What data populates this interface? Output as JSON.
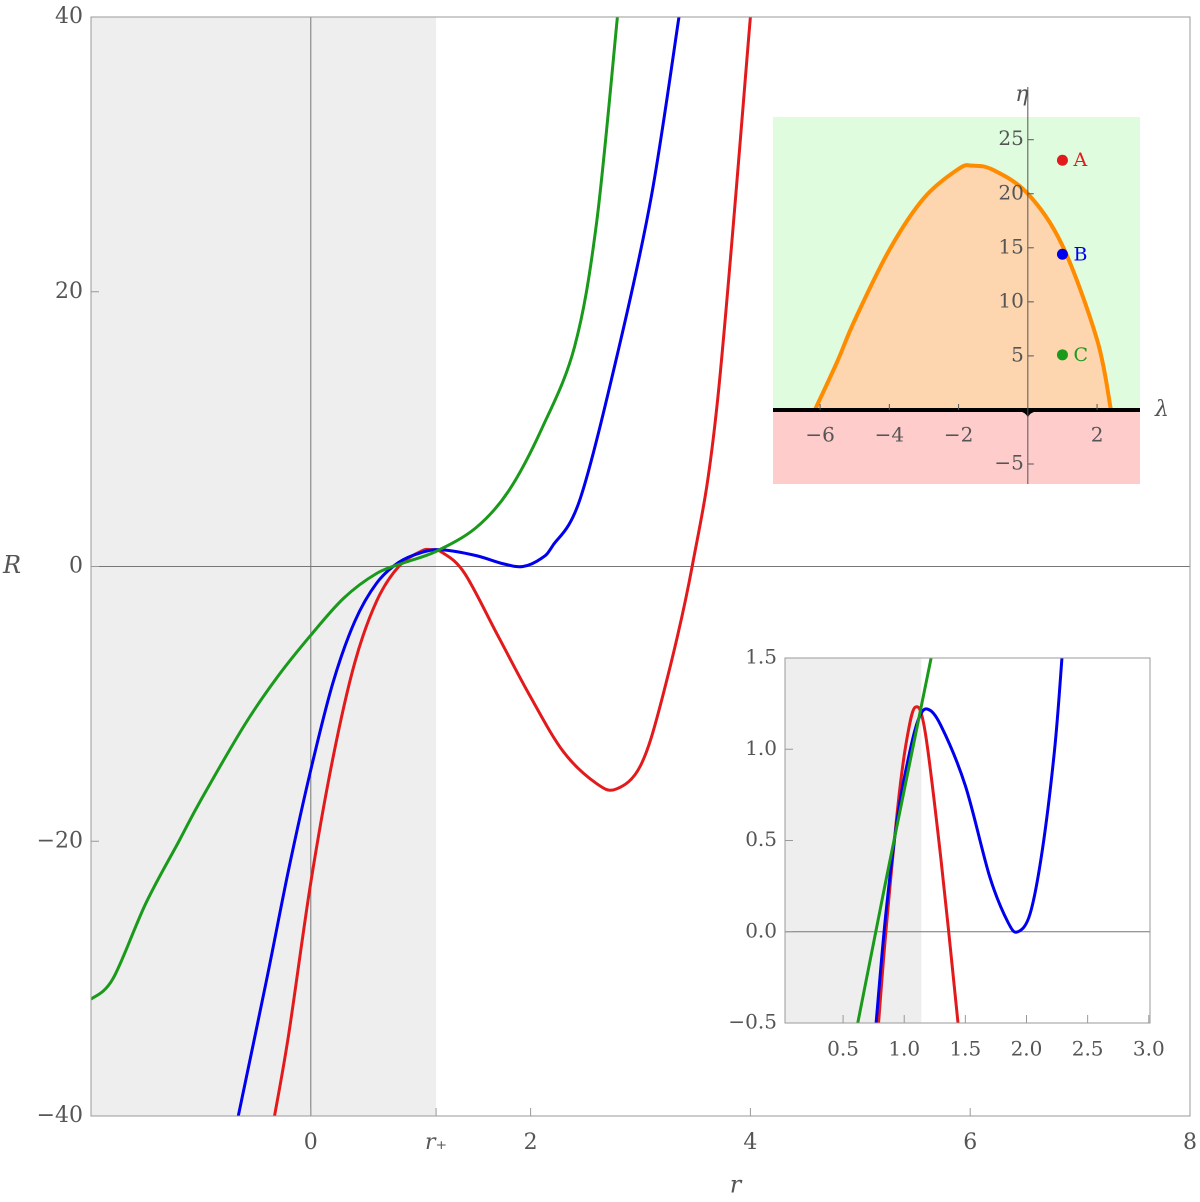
{
  "chart_data": [
    {
      "type": "line",
      "xlabel": "r",
      "ylabel": "R",
      "xlim": [
        -2,
        8
      ],
      "ylim": [
        -40,
        40
      ],
      "xticks": [
        0,
        {
          "value": 1.14,
          "label": "r₊"
        },
        2,
        4,
        6,
        8
      ],
      "yticks": [
        {
          "value": -40,
          "label": "−40"
        },
        {
          "value": -20,
          "label": "−20"
        },
        0,
        20,
        40
      ],
      "shaded_xrange": [
        -2,
        1.14
      ],
      "shade_color": "#eeeeee",
      "frame": true,
      "axes_at_origin": true,
      "series": [
        {
          "color": "#e31a1c",
          "x": [
            -0.33,
            -0.2,
            0,
            0.2,
            0.4,
            0.6,
            0.8,
            1.0,
            1.09,
            1.2,
            1.4,
            1.7,
            2.0,
            2.3,
            2.6,
            2.78,
            3.0,
            3.2,
            3.47,
            3.7,
            4.0
          ],
          "values": [
            -40,
            -34,
            -23,
            -14,
            -7,
            -2.5,
            0,
            1.1,
            1.23,
            1.0,
            -0.5,
            -5,
            -9.5,
            -13.5,
            -15.8,
            -16.2,
            -14.5,
            -9.5,
            0,
            12,
            40
          ]
        },
        {
          "color": "#0000ee",
          "x": [
            -0.66,
            -0.4,
            -0.2,
            0,
            0.2,
            0.4,
            0.6,
            0.8,
            1.0,
            1.19,
            1.5,
            1.75,
            1.93,
            2.1,
            2.2,
            2.45,
            2.8,
            3.1,
            3.35
          ],
          "values": [
            -40,
            -30,
            -22,
            -14.8,
            -8.5,
            -4,
            -1.2,
            0.3,
            1.0,
            1.22,
            0.8,
            0.2,
            0,
            0.6,
            1.5,
            4.9,
            15.8,
            27,
            40
          ]
        },
        {
          "color": "#1a9a1a",
          "x": [
            -2,
            -1.8,
            -1.5,
            -1.2,
            -1,
            -0.6,
            -0.3,
            0,
            0.3,
            0.6,
            0.85,
            1.14,
            1.5,
            1.8,
            2.1,
            2.4,
            2.6,
            2.79
          ],
          "values": [
            -31.5,
            -30,
            -24.5,
            -20,
            -17,
            -11.5,
            -8,
            -5,
            -2.3,
            -0.5,
            0.28,
            1.1,
            2.8,
            5.5,
            10,
            16,
            25,
            40
          ]
        }
      ]
    },
    {
      "type": "region",
      "xlabel": "λ",
      "ylabel": "η",
      "xlim": [
        -7.36,
        3.24
      ],
      "ylim": [
        -6.85,
        27.1
      ],
      "xticks": [
        {
          "value": -6,
          "label": "−6"
        },
        {
          "value": -4,
          "label": "−4"
        },
        {
          "value": -2,
          "label": "−2"
        },
        2
      ],
      "yticks": [
        {
          "value": -5,
          "label": "−5"
        },
        5,
        10,
        15,
        20,
        25
      ],
      "fill_above": "#dffcdf",
      "fill_inside": "#fdd6b0",
      "fill_below": "#ffcccc",
      "boundary_color": "#ff8c00",
      "boundary": {
        "x": [
          -6.15,
          -5.5,
          -5,
          -4,
          -3,
          -2,
          -1.6,
          -1,
          0,
          1,
          2,
          2.4
        ],
        "values": [
          0,
          4.5,
          8.3,
          14.8,
          19.6,
          22.3,
          22.6,
          22.2,
          20,
          15.2,
          6.5,
          0
        ]
      },
      "series": [
        {
          "name": "A",
          "color": "#e31a1c",
          "x": [
            1
          ],
          "values": [
            23.1
          ]
        },
        {
          "name": "B",
          "color": "#0000ee",
          "x": [
            1
          ],
          "values": [
            14.4
          ]
        },
        {
          "name": "C",
          "color": "#1a9a1a",
          "x": [
            1
          ],
          "values": [
            5.1
          ]
        }
      ]
    },
    {
      "type": "line",
      "xlim": [
        0.025,
        3.01
      ],
      "ylim": [
        -0.5,
        1.5
      ],
      "xticks": [
        0.5,
        {
          "value": 1,
          "label": "1.0"
        },
        1.5,
        {
          "value": 2,
          "label": "2.0"
        },
        2.5,
        {
          "value": 3,
          "label": "3.0"
        }
      ],
      "yticks": [
        {
          "value": -0.5,
          "label": "−0.5"
        },
        {
          "value": 0,
          "label": "0.0"
        },
        0.5,
        {
          "value": 1,
          "label": "1.0"
        },
        1.5
      ],
      "shaded_xrange": [
        0.025,
        1.14
      ],
      "shade_color": "#eeeeee",
      "frame": true,
      "axes_at_origin": false,
      "series": [
        {
          "color": "#e31a1c",
          "x": [
            0.79,
            0.85,
            0.95,
            1.02,
            1.09,
            1.17,
            1.3,
            1.44
          ],
          "values": [
            -0.5,
            0,
            0.7,
            1.05,
            1.23,
            1.1,
            0.4,
            -0.5
          ]
        },
        {
          "color": "#0000ee",
          "x": [
            0.77,
            0.85,
            0.95,
            1.05,
            1.12,
            1.19,
            1.3,
            1.5,
            1.7,
            1.85,
            1.93,
            2.03,
            2.13,
            2.23,
            2.29
          ],
          "values": [
            -0.5,
            0.1,
            0.65,
            1.0,
            1.17,
            1.22,
            1.13,
            0.8,
            0.3,
            0.05,
            0,
            0.1,
            0.45,
            1.0,
            1.5
          ]
        },
        {
          "color": "#1a9a1a",
          "x": [
            0.62,
            0.85,
            1.22
          ],
          "values": [
            -0.5,
            0.28,
            1.5
          ]
        }
      ]
    }
  ]
}
